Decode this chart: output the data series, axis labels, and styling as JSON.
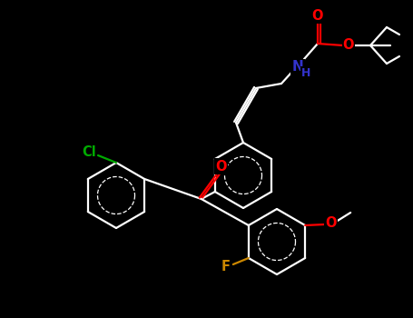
{
  "background_color": "#000000",
  "bond_color": "#ffffff",
  "atom_colors": {
    "O": "#ff0000",
    "N": "#3333cc",
    "Cl": "#00aa00",
    "F": "#cc8800"
  },
  "figsize": [
    4.55,
    3.5
  ],
  "dpi": 100
}
